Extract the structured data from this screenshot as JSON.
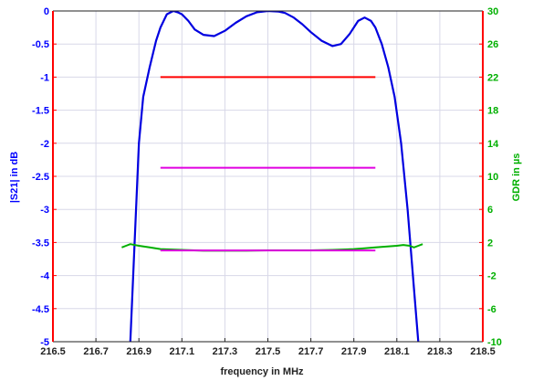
{
  "chart_data": {
    "type": "line",
    "xlabel": "frequency in MHz",
    "ylabel_left": "|S21| in dB",
    "ylabel_right": "GDR in µs",
    "xlim": [
      216.5,
      218.5
    ],
    "ylim_left": [
      -5,
      0
    ],
    "ylim_right": [
      -10,
      30
    ],
    "x_ticks": [
      "216.5",
      "216.7",
      "216.9",
      "217.1",
      "217.3",
      "217.5",
      "217.7",
      "217.9",
      "218.1",
      "218.3",
      "218.5"
    ],
    "y_left_ticks": [
      "0",
      "-0.5",
      "-1",
      "-1.5",
      "-2",
      "-2.5",
      "-3",
      "-3.5",
      "-4",
      "-4.5",
      "-5"
    ],
    "y_right_ticks": [
      "30",
      "26",
      "22",
      "18",
      "14",
      "10",
      "6",
      "2",
      "-2",
      "-6",
      "-10"
    ],
    "grid": true,
    "colors": {
      "s21": "#0000e0",
      "gdr": "#00b000",
      "spec_red": "#ff0000",
      "spec_magenta": "#e000e0",
      "axis_left": "#0000ff",
      "axis_right": "#00b000",
      "frame_lr": "#ff0000",
      "grid": "#d8d8e8"
    },
    "series": [
      {
        "key": "s21",
        "axis": "left",
        "x": [
          216.86,
          216.88,
          216.9,
          216.92,
          216.95,
          216.98,
          217.0,
          217.03,
          217.06,
          217.08,
          217.1,
          217.13,
          217.16,
          217.2,
          217.25,
          217.3,
          217.35,
          217.4,
          217.45,
          217.5,
          217.55,
          217.58,
          217.62,
          217.66,
          217.7,
          217.75,
          217.8,
          217.84,
          217.88,
          217.92,
          217.95,
          217.98,
          218.0,
          218.03,
          218.06,
          218.09,
          218.12,
          218.15,
          218.18,
          218.2
        ],
        "y": [
          -5.0,
          -3.5,
          -2.0,
          -1.3,
          -0.85,
          -0.45,
          -0.25,
          -0.05,
          0.0,
          -0.02,
          -0.05,
          -0.15,
          -0.28,
          -0.36,
          -0.38,
          -0.3,
          -0.18,
          -0.08,
          -0.02,
          0.0,
          -0.01,
          -0.03,
          -0.1,
          -0.2,
          -0.32,
          -0.45,
          -0.53,
          -0.5,
          -0.35,
          -0.15,
          -0.1,
          -0.15,
          -0.25,
          -0.5,
          -0.85,
          -1.3,
          -2.0,
          -3.0,
          -4.2,
          -5.0
        ]
      },
      {
        "key": "gdr",
        "axis": "right",
        "x": [
          216.82,
          216.84,
          216.86,
          216.9,
          216.95,
          217.0,
          217.1,
          217.2,
          217.3,
          217.4,
          217.5,
          217.6,
          217.7,
          217.8,
          217.9,
          217.95,
          218.0,
          218.05,
          218.1,
          218.13,
          218.16,
          218.18,
          218.2,
          218.22
        ],
        "y": [
          1.4,
          1.6,
          1.8,
          1.6,
          1.4,
          1.2,
          1.1,
          1.0,
          1.0,
          1.0,
          1.05,
          1.05,
          1.05,
          1.1,
          1.2,
          1.3,
          1.4,
          1.5,
          1.6,
          1.7,
          1.6,
          1.4,
          1.6,
          1.8
        ]
      },
      {
        "key": "spec_red",
        "axis": "left",
        "x": [
          217.0,
          218.0
        ],
        "y": [
          -1.0,
          -1.0
        ]
      },
      {
        "key": "spec_magenta",
        "axis": "left",
        "x": [
          217.0,
          218.0
        ],
        "y": [
          -2.37,
          -2.37
        ]
      },
      {
        "key": "spec_magenta_low",
        "axis": "left",
        "x": [
          217.0,
          218.0
        ],
        "y": [
          -3.62,
          -3.62
        ]
      }
    ]
  }
}
